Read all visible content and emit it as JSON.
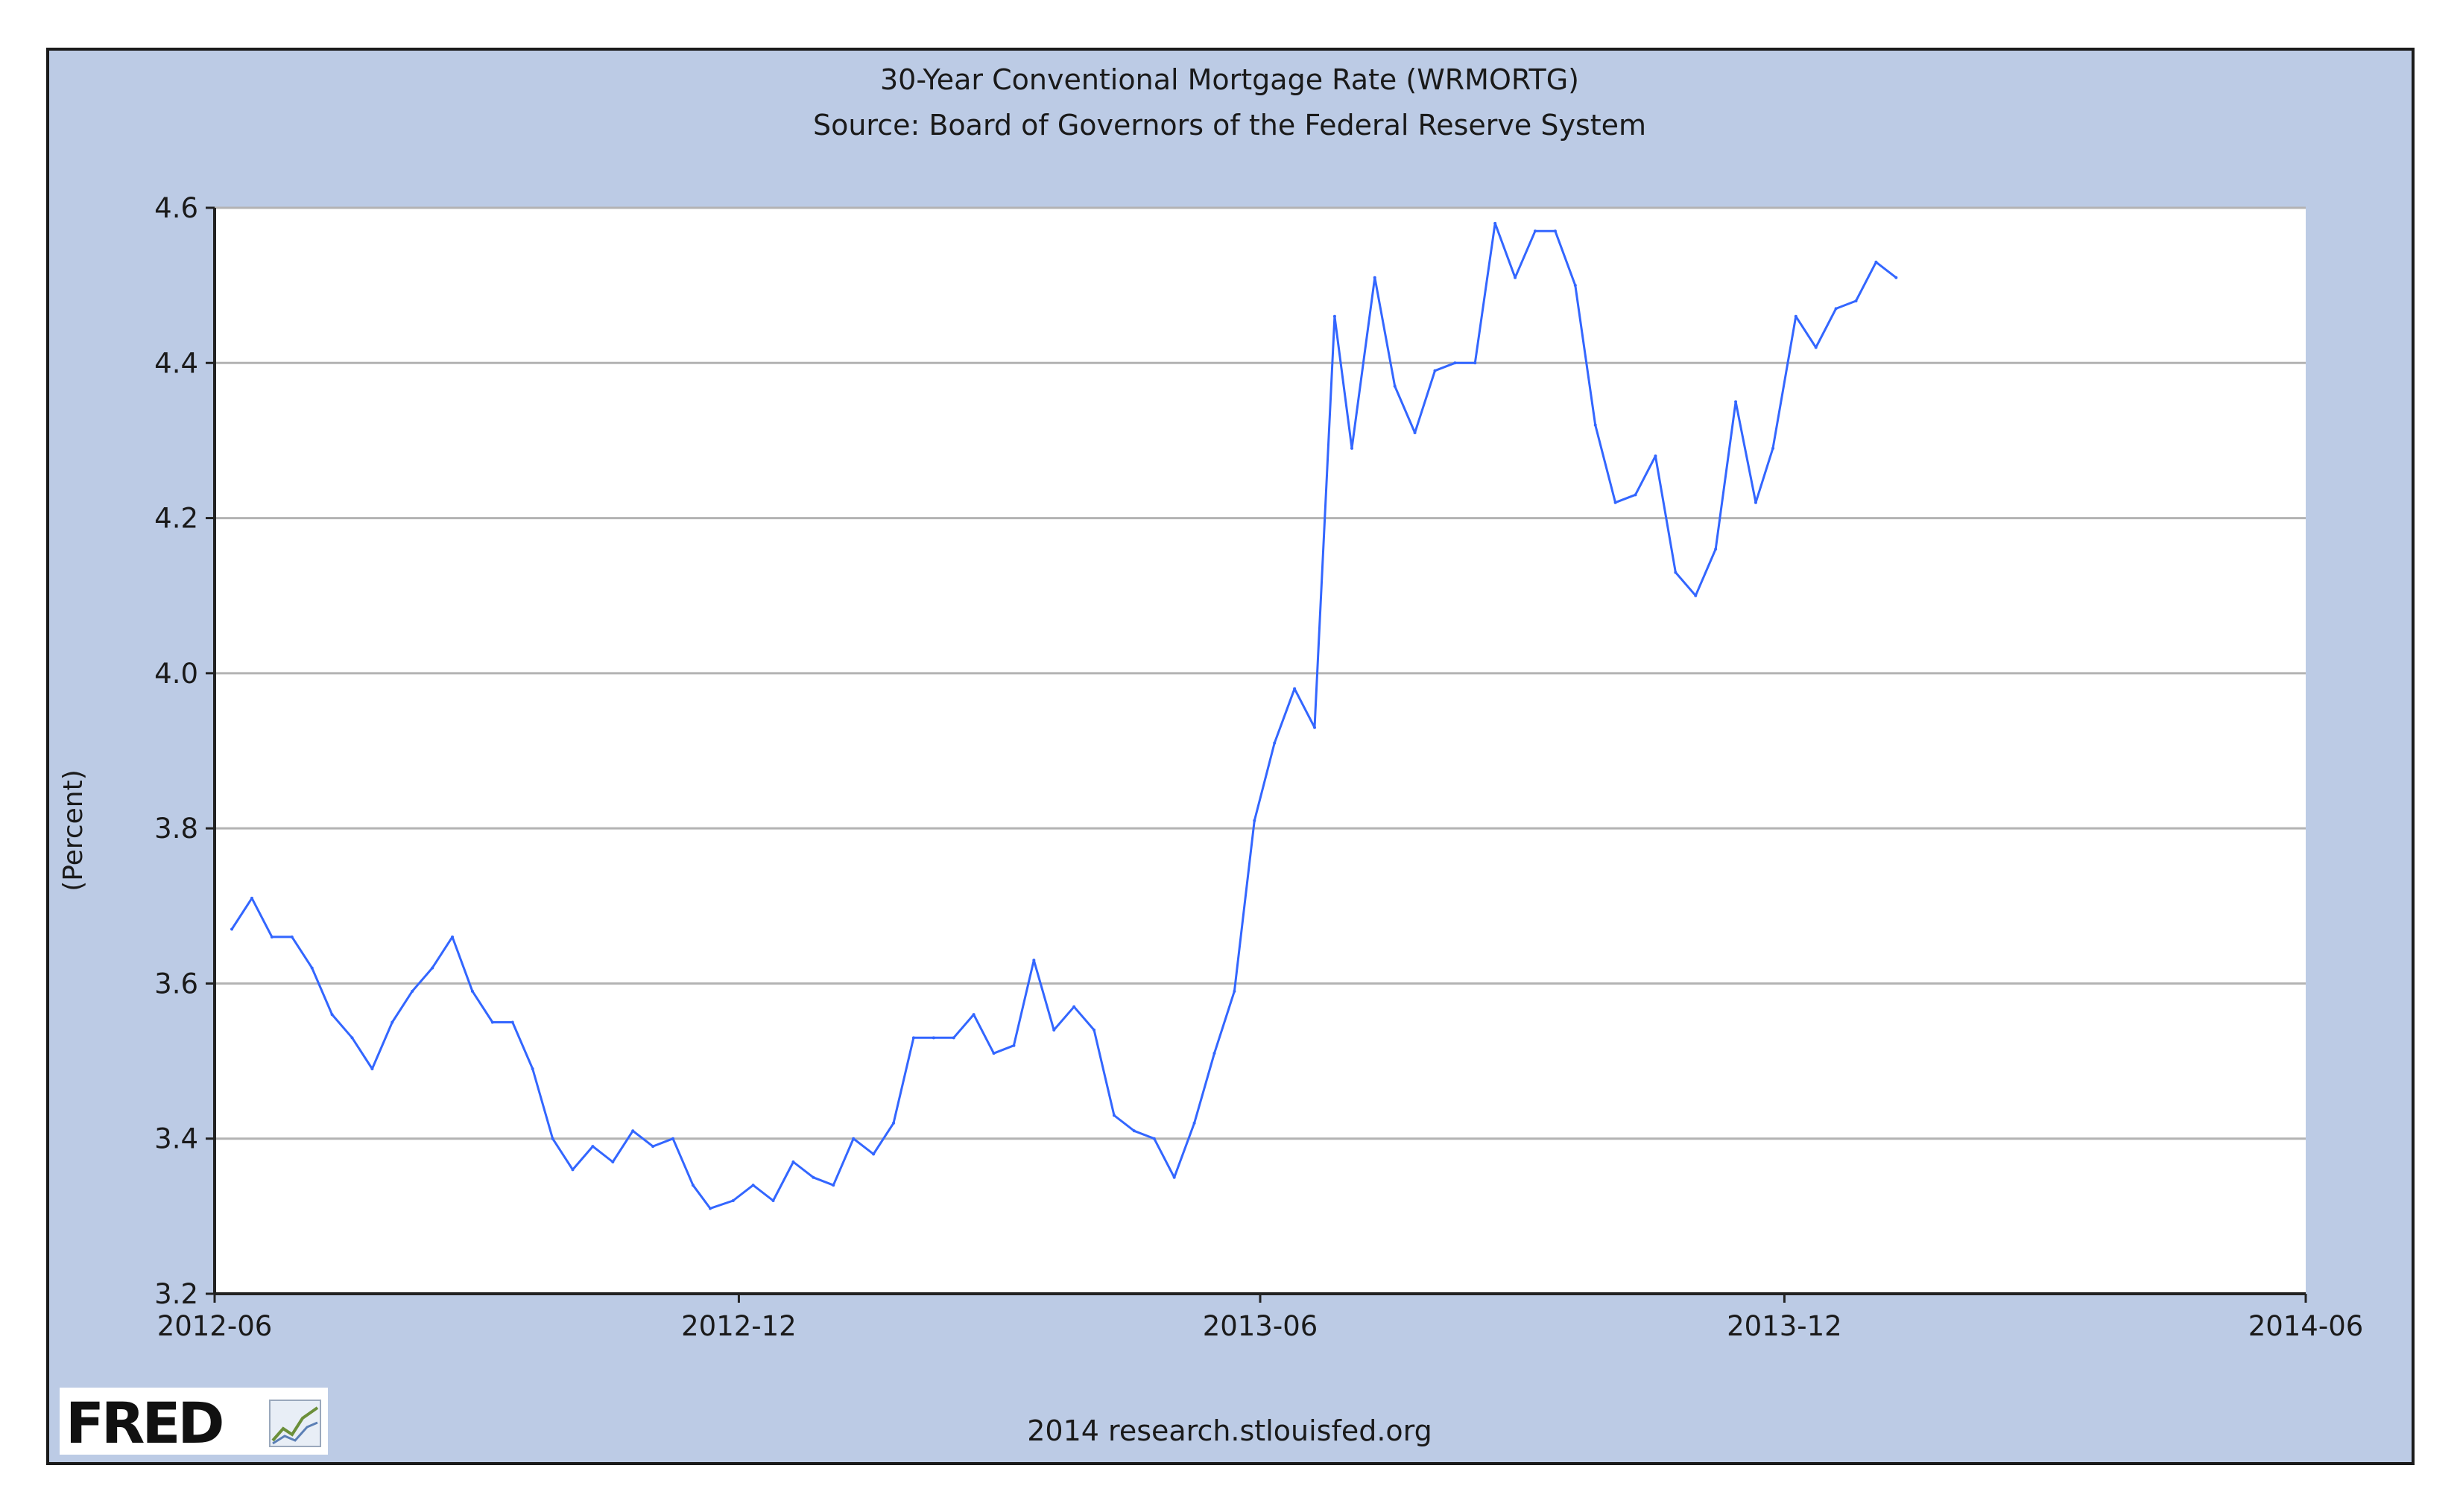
{
  "header": {
    "title": "30-Year Conventional Mortgage Rate (WRMORTG)",
    "subtitle": "Source: Board of Governors of the Federal Reserve System"
  },
  "footer": {
    "logo_text": "FRED",
    "credit": "2014 research.stlouisfed.org"
  },
  "colors": {
    "frame_background": "#bccbe5",
    "plot_background": "#ffffff",
    "gridline": "#b3b3b3",
    "series_line": "#3366ff",
    "axis": "#222222"
  },
  "chart_data": {
    "type": "line",
    "title": "30-Year Conventional Mortgage Rate (WRMORTG)",
    "subtitle": "Source: Board of Governors of the Federal Reserve System",
    "xlabel": "",
    "ylabel": "(Percent)",
    "xlim": [
      "2012-06",
      "2014-06"
    ],
    "ylim": [
      3.2,
      4.6
    ],
    "x_ticks": [
      "2012-06",
      "2012-12",
      "2013-06",
      "2013-12",
      "2014-06"
    ],
    "y_ticks": [
      "3.2",
      "3.4",
      "3.6",
      "3.8",
      "4.0",
      "4.2",
      "4.4",
      "4.6"
    ],
    "grid": "horizontal",
    "legend": "none",
    "series": [
      {
        "x": [
          "2012-06-07",
          "2012-06-14",
          "2012-06-21",
          "2012-06-28",
          "2012-07-05",
          "2012-07-12",
          "2012-07-19",
          "2012-07-26",
          "2012-08-02",
          "2012-08-09",
          "2012-08-16",
          "2012-08-23",
          "2012-08-30",
          "2012-09-06",
          "2012-09-13",
          "2012-09-20",
          "2012-09-27",
          "2012-10-04",
          "2012-10-11",
          "2012-10-18",
          "2012-10-25",
          "2012-11-01",
          "2012-11-08",
          "2012-11-15",
          "2012-11-21",
          "2012-11-29",
          "2012-12-06",
          "2012-12-13",
          "2012-12-20",
          "2012-12-27",
          "2013-01-03",
          "2013-01-10",
          "2013-01-17",
          "2013-01-24",
          "2013-01-31",
          "2013-02-07",
          "2013-02-14",
          "2013-02-21",
          "2013-02-28",
          "2013-03-07",
          "2013-03-14",
          "2013-03-21",
          "2013-03-28",
          "2013-04-04",
          "2013-04-11",
          "2013-04-18",
          "2013-04-25",
          "2013-05-02",
          "2013-05-09",
          "2013-05-16",
          "2013-05-23",
          "2013-05-30",
          "2013-06-06",
          "2013-06-13",
          "2013-06-20",
          "2013-06-27",
          "2013-07-03",
          "2013-07-11",
          "2013-07-18",
          "2013-07-25",
          "2013-08-01",
          "2013-08-08",
          "2013-08-15",
          "2013-08-22",
          "2013-08-29",
          "2013-09-05",
          "2013-09-12",
          "2013-09-19",
          "2013-09-26",
          "2013-10-03",
          "2013-10-10",
          "2013-10-17",
          "2013-10-24",
          "2013-10-31",
          "2013-11-07",
          "2013-11-14",
          "2013-11-21",
          "2013-11-27",
          "2013-12-05",
          "2013-12-12",
          "2013-12-19",
          "2013-12-26",
          "2014-01-02",
          "2014-01-09"
        ],
        "values": [
          3.67,
          3.71,
          3.66,
          3.66,
          3.62,
          3.56,
          3.53,
          3.49,
          3.55,
          3.59,
          3.62,
          3.66,
          3.59,
          3.55,
          3.55,
          3.49,
          3.4,
          3.36,
          3.39,
          3.37,
          3.41,
          3.39,
          3.4,
          3.34,
          3.31,
          3.32,
          3.34,
          3.32,
          3.37,
          3.35,
          3.34,
          3.4,
          3.38,
          3.42,
          3.53,
          3.53,
          3.53,
          3.56,
          3.51,
          3.52,
          3.63,
          3.54,
          3.57,
          3.54,
          3.43,
          3.41,
          3.4,
          3.35,
          3.42,
          3.51,
          3.59,
          3.81,
          3.91,
          3.98,
          3.93,
          4.46,
          4.29,
          4.51,
          4.37,
          4.31,
          4.39,
          4.4,
          4.4,
          4.58,
          4.51,
          4.57,
          4.57,
          4.5,
          4.32,
          4.22,
          4.23,
          4.28,
          4.13,
          4.1,
          4.16,
          4.35,
          4.22,
          4.29,
          4.46,
          4.42,
          4.47,
          4.48,
          4.53,
          4.51
        ]
      }
    ]
  }
}
